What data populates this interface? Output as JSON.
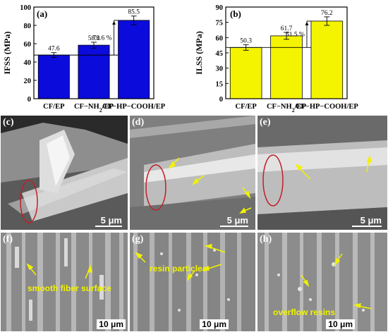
{
  "chart_data": [
    {
      "type": "bar",
      "panel": "(a)",
      "categories": [
        "CF/EP",
        "CF−NH2/EP",
        "CF−HP−COOH/EP"
      ],
      "category_subscripts": [
        null,
        "2",
        null
      ],
      "values": [
        47.6,
        58.4,
        85.5
      ],
      "value_labels": [
        "47.6",
        "58.4",
        "85.5"
      ],
      "ylabel": "IFSS (MPa)",
      "ylim": [
        0,
        100
      ],
      "yticks": [
        0,
        20,
        40,
        60,
        80,
        100
      ],
      "bar_color": "#0b0bdc",
      "error_bars": true,
      "increase_annotation": "79.6 %",
      "grid": false
    },
    {
      "type": "bar",
      "panel": "(b)",
      "categories": [
        "CF/EP",
        "CF−NH2/EP",
        "CF−HP−COOH/EP"
      ],
      "category_subscripts": [
        null,
        "2",
        null
      ],
      "values": [
        50.3,
        61.7,
        76.2
      ],
      "value_labels": [
        "50.3",
        "61.7",
        "76.2"
      ],
      "ylabel": "ILSS (MPa)",
      "ylim": [
        0,
        90
      ],
      "yticks": [
        0,
        15,
        30,
        45,
        60,
        75,
        90
      ],
      "bar_color": "#f4f400",
      "error_bars": true,
      "increase_annotation": "51.5 %",
      "grid": false
    }
  ],
  "images": {
    "c": {
      "label": "(c)",
      "scale": "5 μm"
    },
    "d": {
      "label": "(d)",
      "scale": "5 μm"
    },
    "e": {
      "label": "(e)",
      "scale": "5 μm"
    },
    "f": {
      "label": "(f)",
      "scale": "10 μm",
      "annotation": "smooth fiber surface"
    },
    "g": {
      "label": "(g)",
      "scale": "10 μm",
      "annotation": "resin particles"
    },
    "h": {
      "label": "(h)",
      "scale": "10 μm",
      "annotation": "overflow resins"
    }
  },
  "colors": {
    "annotation": "#f2f200",
    "fracture_circle": "#c0202a"
  }
}
